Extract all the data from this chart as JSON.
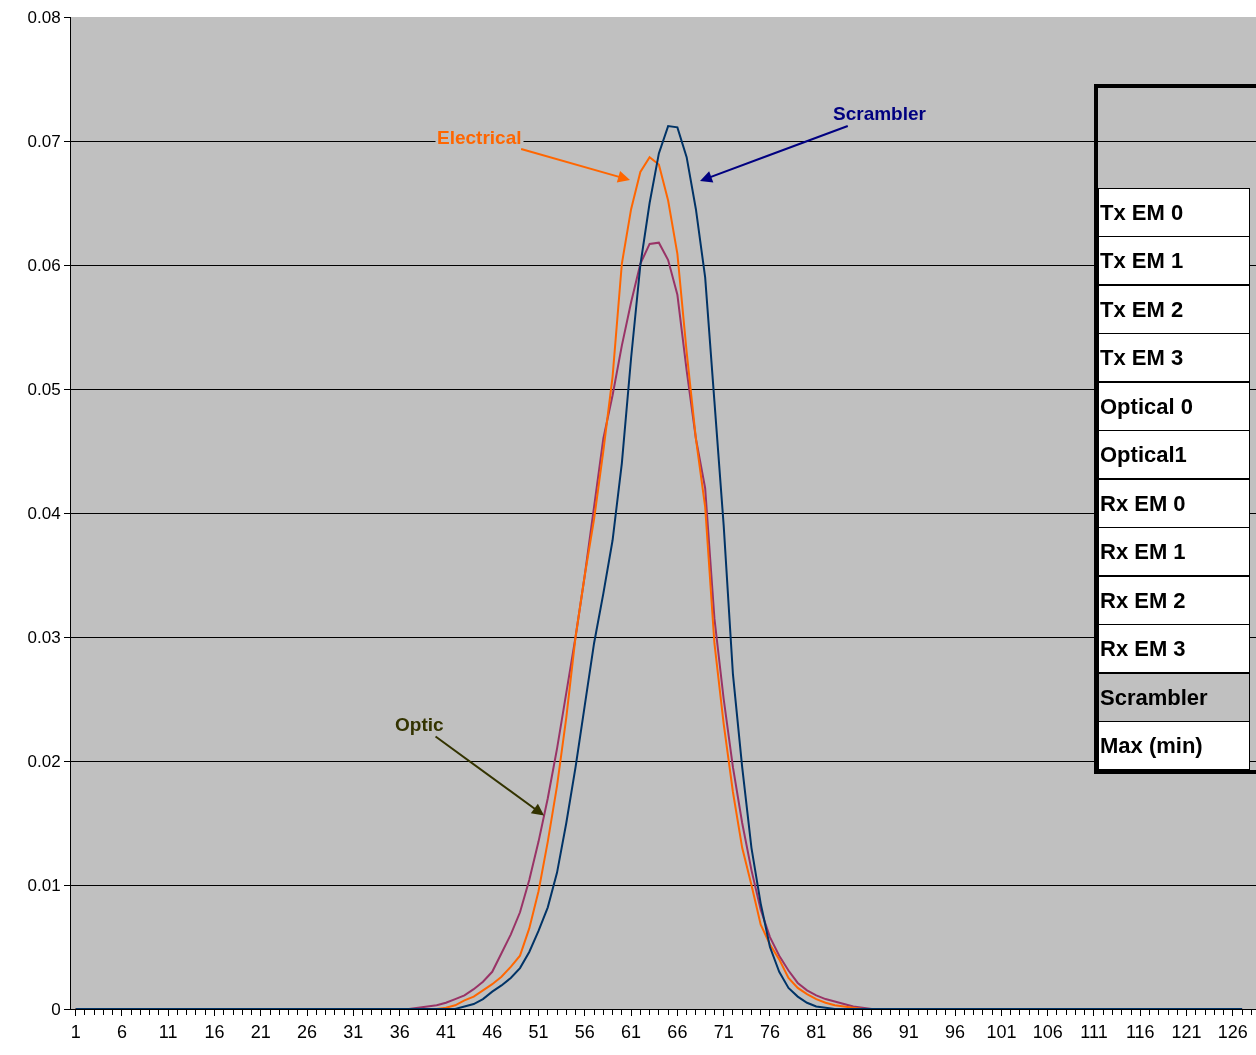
{
  "chart_data": {
    "type": "line",
    "xlim": [
      0.5,
      128.5
    ],
    "xticks": [
      1,
      6,
      11,
      16,
      21,
      26,
      31,
      36,
      41,
      46,
      51,
      56,
      61,
      66,
      71,
      76,
      81,
      86,
      91,
      96,
      101,
      106,
      111,
      116,
      121,
      126
    ],
    "ylim": [
      0,
      0.08
    ],
    "yticks": [
      0,
      0.01,
      0.02,
      0.03,
      0.04,
      0.05,
      0.06,
      0.07,
      0.08
    ],
    "grid": "y",
    "marker": "none",
    "line_style": "solid",
    "series": [
      {
        "color": "#993366",
        "x": [
          1,
          37,
          38,
          39,
          40,
          41,
          42,
          43,
          44,
          45,
          46,
          47,
          48,
          49,
          50,
          51,
          52,
          53,
          54,
          55,
          56,
          57,
          58,
          59,
          60,
          61,
          62,
          63,
          64,
          65,
          66,
          67,
          68,
          69,
          70,
          71,
          72,
          73,
          74,
          75,
          76,
          77,
          78,
          79,
          80,
          81,
          82,
          83,
          84,
          85,
          86,
          87,
          127
        ],
        "values": [
          0,
          0,
          0.0001,
          0.0002,
          0.0003,
          0.0005,
          0.0008,
          0.0011,
          0.0016,
          0.0022,
          0.003,
          0.0045,
          0.006,
          0.0078,
          0.0104,
          0.0135,
          0.017,
          0.021,
          0.0255,
          0.03,
          0.035,
          0.0405,
          0.046,
          0.0495,
          0.0535,
          0.057,
          0.0601,
          0.0617,
          0.0618,
          0.0604,
          0.0576,
          0.0515,
          0.046,
          0.042,
          0.0315,
          0.025,
          0.0195,
          0.015,
          0.0112,
          0.008,
          0.0058,
          0.0043,
          0.0031,
          0.0021,
          0.0015,
          0.0011,
          0.0008,
          0.0006,
          0.0004,
          0.0002,
          0.0001,
          0,
          0
        ]
      },
      {
        "color": "#ff6600",
        "x": [
          1,
          40,
          41,
          42,
          43,
          44,
          45,
          46,
          47,
          48,
          49,
          50,
          51,
          52,
          53,
          54,
          55,
          56,
          57,
          58,
          59,
          60,
          61,
          62,
          63,
          64,
          65,
          66,
          67,
          68,
          69,
          70,
          71,
          72,
          73,
          74,
          75,
          76,
          77,
          78,
          79,
          80,
          81,
          82,
          83,
          84,
          85,
          86,
          127
        ],
        "values": [
          0,
          0,
          0.0001,
          0.0003,
          0.0007,
          0.001,
          0.0015,
          0.002,
          0.0026,
          0.0034,
          0.0043,
          0.0065,
          0.0095,
          0.0135,
          0.018,
          0.0235,
          0.03,
          0.035,
          0.0395,
          0.045,
          0.051,
          0.0601,
          0.0645,
          0.0675,
          0.0687,
          0.0681,
          0.0652,
          0.0609,
          0.053,
          0.046,
          0.0405,
          0.0295,
          0.023,
          0.0175,
          0.013,
          0.01,
          0.0068,
          0.0052,
          0.004,
          0.0025,
          0.0017,
          0.0012,
          0.0008,
          0.0005,
          0.0003,
          0.0002,
          0.0001,
          0,
          0
        ]
      },
      {
        "color": "#003366",
        "x": [
          1,
          42,
          43,
          44,
          45,
          46,
          47,
          48,
          49,
          50,
          51,
          52,
          53,
          54,
          55,
          56,
          57,
          58,
          59,
          60,
          61,
          62,
          63,
          64,
          65,
          66,
          67,
          68,
          69,
          70,
          71,
          72,
          73,
          74,
          75,
          76,
          77,
          78,
          79,
          80,
          81,
          82,
          83,
          127
        ],
        "values": [
          0,
          0,
          0.0002,
          0.0004,
          0.0008,
          0.0014,
          0.0019,
          0.0025,
          0.0033,
          0.0046,
          0.0063,
          0.0082,
          0.011,
          0.015,
          0.0195,
          0.0245,
          0.0295,
          0.0335,
          0.0378,
          0.044,
          0.0525,
          0.06,
          0.065,
          0.069,
          0.0712,
          0.0711,
          0.0687,
          0.0645,
          0.059,
          0.049,
          0.039,
          0.027,
          0.0195,
          0.013,
          0.0085,
          0.005,
          0.003,
          0.0017,
          0.001,
          0.0005,
          0.0002,
          0.0001,
          0,
          0
        ]
      }
    ],
    "annotations": [
      "Electrical",
      "Scrambler",
      {
        "text": "Optic",
        "x": 51.6,
        "y": 0.0156
      },
      "Tx EM 0",
      "Tx EM 1",
      "Tx EM 2",
      "Tx EM 3",
      "Optical 0",
      "Optical1",
      "Rx EM 0",
      "Rx EM 1",
      "Rx EM 2",
      "Rx EM 3",
      "Scrambler",
      "Max (min)"
    ]
  }
}
